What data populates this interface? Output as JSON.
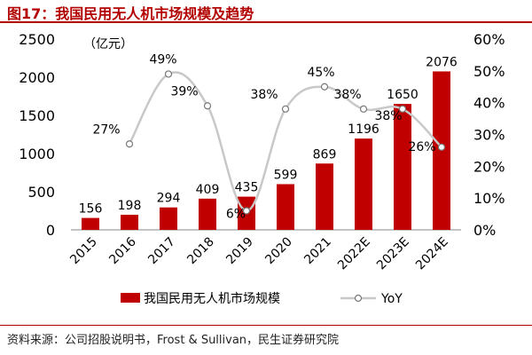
{
  "header": {
    "title": "图17：我国民用无人机市场规模及趋势"
  },
  "footer": {
    "source": "资料来源：公司招股说明书，Frost & Sullivan，民生证券研究院"
  },
  "chart_data": {
    "type": "bar",
    "title": "",
    "unit_label": "（亿元）",
    "categories": [
      "2015",
      "2016",
      "2017",
      "2018",
      "2019",
      "2020",
      "2021",
      "2022E",
      "2023E",
      "2024E"
    ],
    "series": [
      {
        "name": "我国民用无人机市场规模",
        "type": "bar",
        "axis": "left",
        "values": [
          156,
          198,
          294,
          409,
          435,
          599,
          869,
          1196,
          1650,
          2076
        ],
        "data_labels": [
          "156",
          "198",
          "294",
          "409",
          "435",
          "599",
          "869",
          "1196",
          "1650",
          "2076"
        ]
      },
      {
        "name": "YoY",
        "type": "line",
        "axis": "right",
        "values": [
          null,
          27,
          49,
          39,
          6,
          38,
          45,
          38,
          38,
          26
        ],
        "data_labels": [
          "",
          "27%",
          "49%",
          "39%",
          "6%",
          "38%",
          "45%",
          "38%",
          "38%",
          "26%"
        ]
      }
    ],
    "left_axis": {
      "ylim": [
        0,
        2500
      ],
      "ticks": [
        "0",
        "500",
        "1000",
        "1500",
        "2000",
        "2500"
      ]
    },
    "right_axis": {
      "ylim": [
        0,
        60
      ],
      "ticks": [
        "0%",
        "10%",
        "20%",
        "30%",
        "40%",
        "50%",
        "60%"
      ]
    },
    "grid": false,
    "legend": "bottom",
    "colors": {
      "bar": "#c00000",
      "line": "#c8c8c8",
      "marker_fill": "#ffffff",
      "title": "#b30000"
    }
  }
}
